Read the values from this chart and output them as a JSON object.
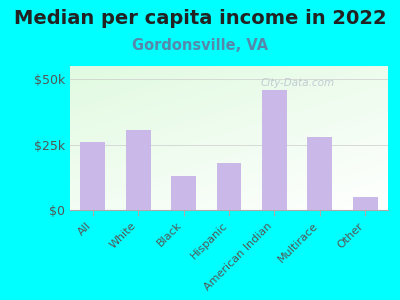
{
  "title": "Median per capita income in 2022",
  "subtitle": "Gordonsville, VA",
  "categories": [
    "All",
    "White",
    "Black",
    "Hispanic",
    "American Indian",
    "Multirace",
    "Other"
  ],
  "values": [
    26000,
    30500,
    13000,
    18000,
    46000,
    28000,
    5000
  ],
  "bar_color": "#c9b8e8",
  "background_color": "#00ffff",
  "title_fontsize": 14,
  "subtitle_fontsize": 10.5,
  "ylabel_ticks": [
    0,
    25000,
    50000
  ],
  "ylabel_labels": [
    "$0",
    "$25k",
    "$50k"
  ],
  "ylim": [
    0,
    55000
  ],
  "watermark": "City-Data.com",
  "title_color": "#222222",
  "subtitle_color": "#5588aa",
  "tick_color": "#555555"
}
